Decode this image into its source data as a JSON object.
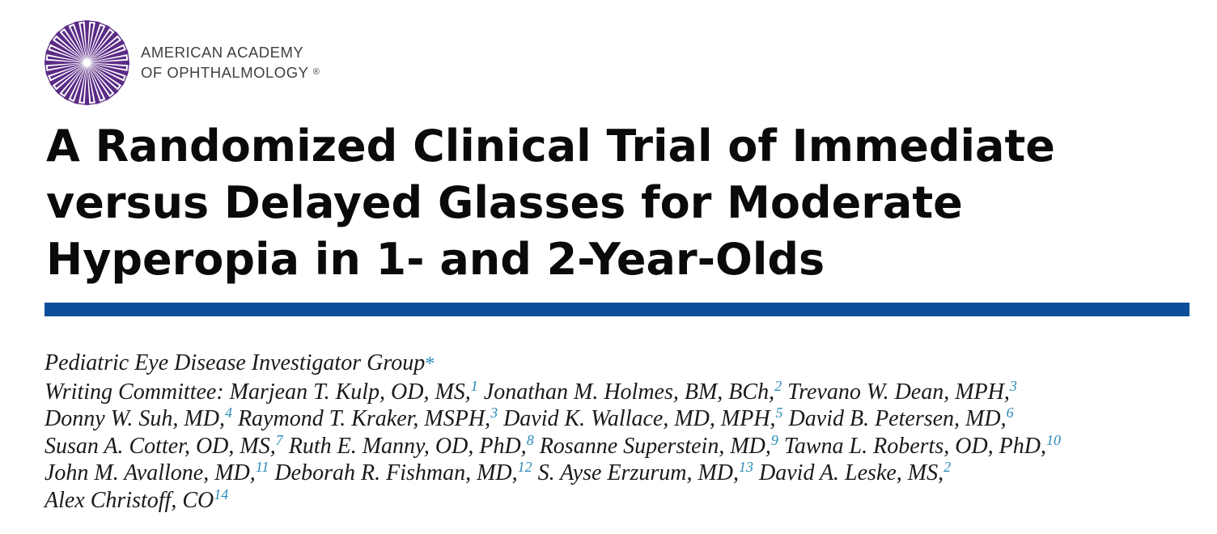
{
  "header": {
    "org_line1": "AMERICAN ACADEMY",
    "org_line2": "OF OPHTHALMOLOGY",
    "registered_mark": "®",
    "logo_icon": "sunburst-logo-icon",
    "logo_color": "#5b2c86"
  },
  "article": {
    "title_lines": [
      "A Randomized Clinical Trial of Immediate",
      "versus Delayed Glasses for Moderate",
      "Hyperopia in 1- and 2-Year-Olds"
    ],
    "rule_color": "#0b4f9c"
  },
  "byline": {
    "group": "Pediatric Eye Disease Investigator Group",
    "group_mark": "*",
    "lines": [
      [
        {
          "text": "Writing Committee: Marjean T. Kulp, OD, MS,",
          "sup": "1"
        },
        {
          "text": " Jonathan M. Holmes, BM, BCh,",
          "sup": "2"
        },
        {
          "text": " Trevano W. Dean, MPH,",
          "sup": "3"
        }
      ],
      [
        {
          "text": "Donny W. Suh, MD,",
          "sup": "4"
        },
        {
          "text": " Raymond T. Kraker, MSPH,",
          "sup": "3"
        },
        {
          "text": " David K. Wallace, MD, MPH,",
          "sup": "5"
        },
        {
          "text": " David B. Petersen, MD,",
          "sup": "6"
        }
      ],
      [
        {
          "text": "Susan A. Cotter, OD, MS,",
          "sup": "7"
        },
        {
          "text": " Ruth E. Manny, OD, PhD,",
          "sup": "8"
        },
        {
          "text": " Rosanne Superstein, MD,",
          "sup": "9"
        },
        {
          "text": " Tawna L. Roberts, OD, PhD,",
          "sup": "10"
        }
      ],
      [
        {
          "text": "John M. Avallone, MD,",
          "sup": "11"
        },
        {
          "text": " Deborah R. Fishman, MD,",
          "sup": "12"
        },
        {
          "text": " S. Ayse Erzurum, MD,",
          "sup": "13"
        },
        {
          "text": " David A. Leske, MS,",
          "sup": "2"
        }
      ],
      [
        {
          "text": "Alex Christoff, CO",
          "sup": "14"
        }
      ]
    ]
  }
}
